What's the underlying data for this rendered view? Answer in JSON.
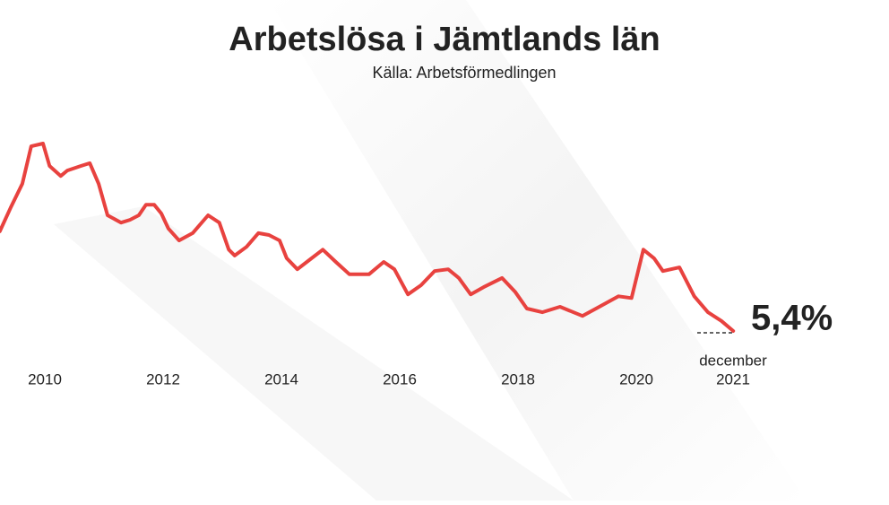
{
  "chart_data": {
    "type": "line",
    "title": "Arbetslösa i Jämtlands län",
    "subtitle": "Källa: Arbetsförmedlingen",
    "x": [
      2009.24,
      2009.42,
      2009.62,
      2009.77,
      2009.97,
      2010.08,
      2010.27,
      2010.38,
      2010.61,
      2010.76,
      2010.91,
      2011.06,
      2011.29,
      2011.44,
      2011.59,
      2011.71,
      2011.85,
      2011.97,
      2012.09,
      2012.27,
      2012.5,
      2012.76,
      2012.95,
      2013.11,
      2013.21,
      2013.41,
      2013.61,
      2013.79,
      2013.97,
      2014.09,
      2014.27,
      2014.47,
      2014.7,
      2014.92,
      2015.15,
      2015.48,
      2015.73,
      2015.91,
      2016.14,
      2016.36,
      2016.59,
      2016.82,
      2017.0,
      2017.2,
      2017.42,
      2017.73,
      2017.95,
      2018.15,
      2018.41,
      2018.71,
      2019.09,
      2019.32,
      2019.7,
      2019.92,
      2020.12,
      2020.3,
      2020.45,
      2020.73,
      2020.98,
      2021.21,
      2021.44,
      2021.64
    ],
    "series": [
      {
        "name": "Arbetslösa",
        "color": "#e8423f",
        "values": [
          7.58,
          8.09,
          8.62,
          9.44,
          9.5,
          9.01,
          8.79,
          8.91,
          9.01,
          9.07,
          8.62,
          7.93,
          7.77,
          7.83,
          7.93,
          8.16,
          8.16,
          7.97,
          7.64,
          7.38,
          7.54,
          7.93,
          7.77,
          7.18,
          7.05,
          7.24,
          7.54,
          7.5,
          7.38,
          6.99,
          6.75,
          6.95,
          7.18,
          6.91,
          6.64,
          6.64,
          6.91,
          6.75,
          6.2,
          6.4,
          6.71,
          6.75,
          6.56,
          6.2,
          6.36,
          6.56,
          6.26,
          5.89,
          5.81,
          5.93,
          5.73,
          5.89,
          6.16,
          6.12,
          7.18,
          6.99,
          6.71,
          6.79,
          6.16,
          5.81,
          5.62,
          5.4
        ]
      }
    ],
    "xticks": [
      2010,
      2012,
      2014,
      2016,
      2018,
      2020
    ],
    "end_label": {
      "value": 5.4,
      "label": "5,4%",
      "month": "december",
      "year": "2021"
    }
  }
}
